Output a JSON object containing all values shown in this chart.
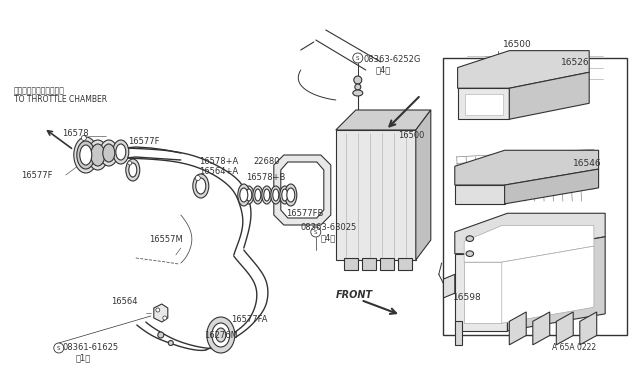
{
  "bg_color": "#ffffff",
  "fig_width": 6.4,
  "fig_height": 3.72,
  "dpi": 100,
  "line_color": "#333333",
  "japanese_text": "スロットルチャンバーヘ",
  "throttle_text": "TO THROTTLE CHAMBER",
  "front_text": "FRONT",
  "diagram_code": "A 65A 0222"
}
